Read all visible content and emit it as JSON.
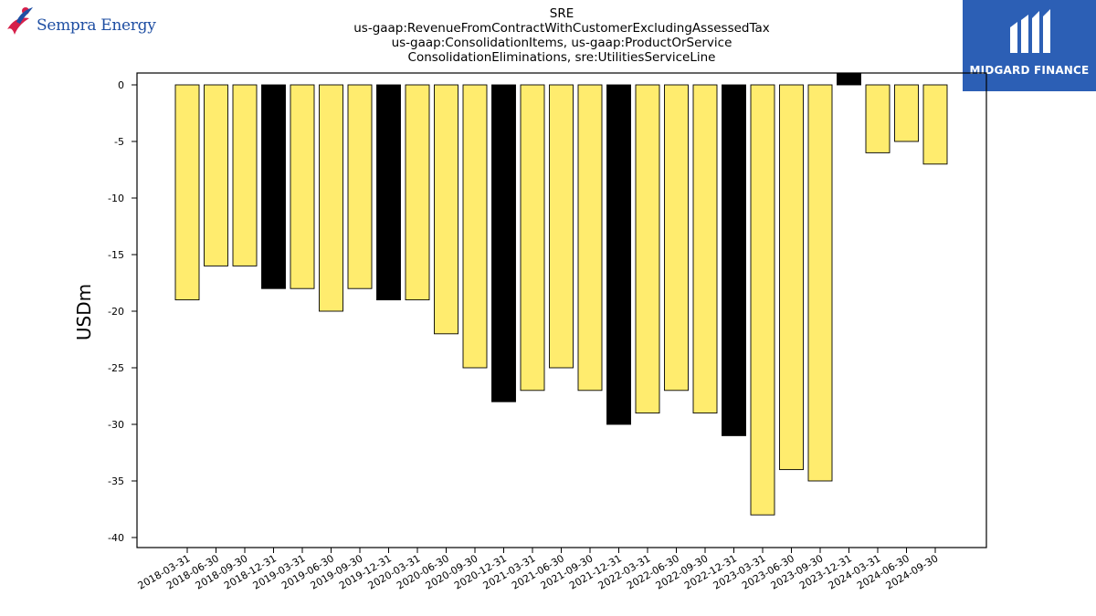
{
  "brand_left": {
    "name": "Sempra Energy",
    "mark": "sempra-dancer-logo",
    "color": "#1f4fa3",
    "accent": "#d6204a"
  },
  "brand_right": {
    "name": "MIDGARD FINANCE",
    "mark": "midgard-m-logo",
    "background": "#2c5fb5"
  },
  "chart_data": {
    "type": "bar",
    "title": "SRE",
    "subtitle_lines": [
      "us-gaap:RevenueFromContractWithCustomerExcludingAssessedTax",
      "us-gaap:ConsolidationItems, us-gaap:ProductOrService",
      "ConsolidationEliminations, sre:UtilitiesServiceLine"
    ],
    "xlabel": "",
    "ylabel": "USDm",
    "ylim": [
      -41,
      1
    ],
    "yticks": [
      0,
      -5,
      -10,
      -15,
      -20,
      -25,
      -30,
      -35,
      -40
    ],
    "grid": false,
    "categories": [
      "2018-03-31",
      "2018-06-30",
      "2018-09-30",
      "2018-12-31",
      "2019-03-31",
      "2019-06-30",
      "2019-09-30",
      "2019-12-31",
      "2020-03-31",
      "2020-06-30",
      "2020-09-30",
      "2020-12-31",
      "2021-03-31",
      "2021-06-30",
      "2021-09-30",
      "2021-12-31",
      "2022-03-31",
      "2022-06-30",
      "2022-09-30",
      "2022-12-31",
      "2023-03-31",
      "2023-06-30",
      "2023-09-30",
      "2023-12-31",
      "2024-03-31",
      "2024-06-30",
      "2024-09-30"
    ],
    "values": [
      -19,
      -16,
      -16,
      -18,
      -18,
      -20,
      -18,
      -19,
      -19,
      -22,
      -25,
      -28,
      -27,
      -25,
      -27,
      -30,
      -29,
      -27,
      -29,
      -31,
      -38,
      -34,
      -35,
      1,
      -6,
      -5,
      -7
    ],
    "colors": {
      "quarter": "#ffec6e",
      "year_end": "#000000",
      "edge": "#000000"
    }
  }
}
